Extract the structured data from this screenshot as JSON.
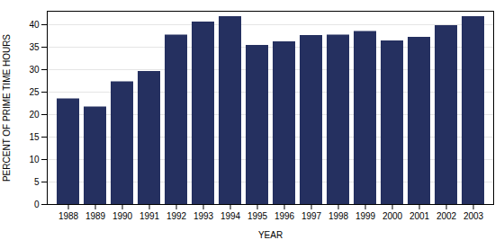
{
  "chart_data": {
    "type": "bar",
    "categories": [
      "1988",
      "1989",
      "1990",
      "1991",
      "1992",
      "1993",
      "1994",
      "1995",
      "1996",
      "1997",
      "1998",
      "1999",
      "2000",
      "2001",
      "2002",
      "2003"
    ],
    "values": [
      23.5,
      21.7,
      27.3,
      29.6,
      37.7,
      40.6,
      41.8,
      35.4,
      36.2,
      37.6,
      37.7,
      38.5,
      36.4,
      37.2,
      39.8,
      41.8
    ],
    "color": "#253060",
    "xlabel": "YEAR",
    "ylabel": "PERCENT OF PRIME TIME HOURS",
    "ylim": [
      0,
      43
    ],
    "yticks": [
      0,
      5,
      10,
      15,
      20,
      25,
      30,
      35,
      40
    ],
    "grid": true
  }
}
